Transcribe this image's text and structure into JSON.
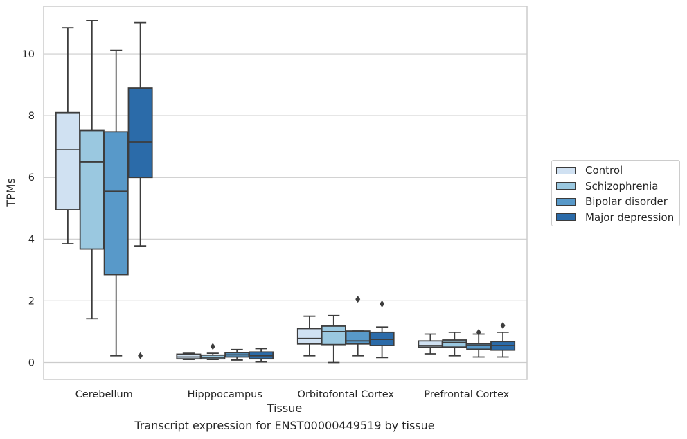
{
  "chart_data": {
    "type": "box",
    "title": "Transcript expression for ENST00000449519 by tissue",
    "xlabel": "Tissue",
    "ylabel": "TPMs",
    "ylim": [
      -0.55,
      11.55
    ],
    "yticks": [
      0,
      2,
      4,
      6,
      8,
      10
    ],
    "categories": [
      "Cerebellum",
      "Hipppocampus",
      "Orbitofontal Cortex",
      "Prefrontal Cortex"
    ],
    "grid": "horizontal",
    "legend_position": "right",
    "series": [
      {
        "name": "Control",
        "color": "#d0e1f2",
        "boxes": [
          {
            "whislo": 3.85,
            "q1": 4.95,
            "med": 6.9,
            "q3": 8.1,
            "whishi": 10.85,
            "fliers": []
          },
          {
            "whislo": 0.1,
            "q1": 0.12,
            "med": 0.18,
            "q3": 0.27,
            "whishi": 0.3,
            "fliers": []
          },
          {
            "whislo": 0.22,
            "q1": 0.6,
            "med": 0.78,
            "q3": 1.1,
            "whishi": 1.5,
            "fliers": []
          },
          {
            "whislo": 0.28,
            "q1": 0.5,
            "med": 0.55,
            "q3": 0.7,
            "whishi": 0.92,
            "fliers": []
          }
        ]
      },
      {
        "name": "Schizophrenia",
        "color": "#9ac8e0",
        "boxes": [
          {
            "whislo": 1.42,
            "q1": 3.68,
            "med": 6.5,
            "q3": 7.52,
            "whishi": 11.08,
            "fliers": []
          },
          {
            "whislo": 0.1,
            "q1": 0.12,
            "med": 0.17,
            "q3": 0.24,
            "whishi": 0.3,
            "fliers": [
              0.52
            ]
          },
          {
            "whislo": 0.0,
            "q1": 0.58,
            "med": 1.0,
            "q3": 1.18,
            "whishi": 1.52,
            "fliers": []
          },
          {
            "whislo": 0.22,
            "q1": 0.5,
            "med": 0.65,
            "q3": 0.73,
            "whishi": 0.98,
            "fliers": []
          }
        ]
      },
      {
        "name": "Bipolar disorder",
        "color": "#5899c9",
        "boxes": [
          {
            "whislo": 0.22,
            "q1": 2.85,
            "med": 5.55,
            "q3": 7.48,
            "whishi": 10.12,
            "fliers": []
          },
          {
            "whislo": 0.08,
            "q1": 0.18,
            "med": 0.25,
            "q3": 0.32,
            "whishi": 0.42,
            "fliers": []
          },
          {
            "whislo": 0.22,
            "q1": 0.6,
            "med": 0.7,
            "q3": 1.02,
            "whishi": 1.02,
            "fliers": [
              2.05
            ]
          },
          {
            "whislo": 0.18,
            "q1": 0.43,
            "med": 0.55,
            "q3": 0.6,
            "whishi": 0.92,
            "fliers": [
              0.98
            ]
          }
        ]
      },
      {
        "name": "Major depression",
        "color": "#2b6ba9",
        "boxes": [
          {
            "whislo": 3.78,
            "q1": 6.0,
            "med": 7.15,
            "q3": 8.9,
            "whishi": 11.02,
            "fliers": [
              0.22
            ]
          },
          {
            "whislo": 0.02,
            "q1": 0.12,
            "med": 0.22,
            "q3": 0.34,
            "whishi": 0.45,
            "fliers": []
          },
          {
            "whislo": 0.16,
            "q1": 0.55,
            "med": 0.75,
            "q3": 0.98,
            "whishi": 1.15,
            "fliers": [
              1.9
            ]
          },
          {
            "whislo": 0.18,
            "q1": 0.4,
            "med": 0.55,
            "q3": 0.68,
            "whishi": 0.98,
            "fliers": [
              1.2
            ]
          }
        ]
      }
    ]
  }
}
